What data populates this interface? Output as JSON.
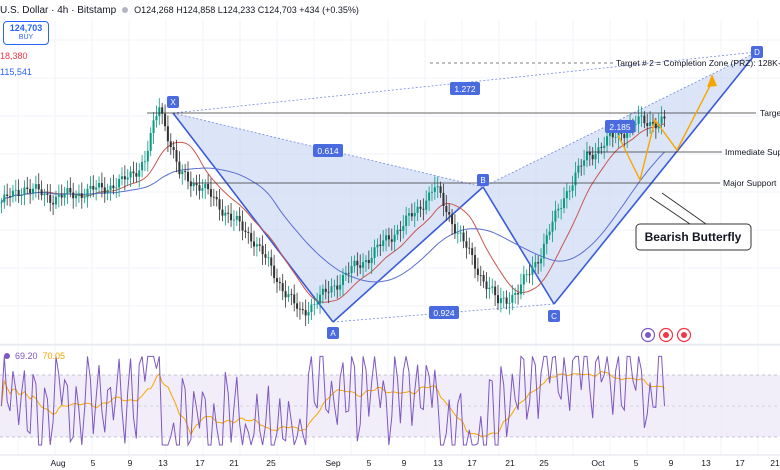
{
  "header": {
    "title": "U.S. Dollar · 4h · Bitstamp",
    "ohlc": "O124,268 H124,858 L124,233 C124,703 +434 (+0.35%)"
  },
  "buy_box": {
    "price": "124,703",
    "label": "BUY"
  },
  "moving_averages": {
    "ma1": "18,380",
    "ma2": "115,541"
  },
  "rsi": {
    "value1": "69.20",
    "value2": "70.05"
  },
  "colors": {
    "candle_up": "#089981",
    "candle_down": "#333333",
    "pattern_fill": "#c5d2f2",
    "pattern_stroke": "#3a5bd9",
    "ma_red": "#c9584f",
    "ma_blue": "#5b6fd1",
    "orange": "#f7a600",
    "rsi_line": "#7e57c2",
    "rsi_band": "#ede7f6"
  },
  "chart_data": [
    {
      "type": "line",
      "series_kind": "candlestick",
      "x_axis_ticks": [
        "Aug",
        "5",
        "9",
        "13",
        "17",
        "21",
        "25",
        "Sep",
        "5",
        "9",
        "13",
        "17",
        "21",
        "25",
        "Oct",
        "5",
        "9",
        "13",
        "17",
        "21"
      ],
      "pattern_points": [
        {
          "label": "X",
          "index": 55
        },
        {
          "label": "A",
          "index": 104
        },
        {
          "label": "B",
          "index": 151
        },
        {
          "label": "C",
          "index": 173
        },
        {
          "label": "D",
          "index": 236
        }
      ],
      "ratios": [
        "0.614",
        "1.272",
        "0.924",
        "2.185"
      ],
      "levels": [
        {
          "label": "Target # 2 = Completion Zone (PRZ): 128K-",
          "y": 0.135
        },
        {
          "label": "Target",
          "y": 0.24
        },
        {
          "label": "Immediate Sup",
          "y": 0.324
        },
        {
          "label": "Major Support",
          "y": 0.389
        }
      ],
      "annotation": "Bearish Butterfly",
      "close_profile": [
        0.39,
        0.36,
        0.34,
        0.36,
        0.4,
        0.36,
        0.34,
        0.33,
        0.31,
        0.32,
        0.35,
        0.39,
        0.42,
        0.44,
        0.46,
        0.49,
        0.52,
        0.5,
        0.47,
        0.45,
        0.47,
        0.5,
        0.49,
        0.47,
        0.44,
        0.46,
        0.48,
        0.46,
        0.44,
        0.45,
        0.47,
        0.49,
        0.51,
        0.52,
        0.5,
        0.49,
        0.46,
        0.44,
        0.45,
        0.43,
        0.41,
        0.4,
        0.39,
        0.42,
        0.44,
        0.43,
        0.4,
        0.37,
        0.36,
        0.38,
        0.34,
        0.3,
        0.26,
        0.22,
        0.2,
        0.25,
        0.3,
        0.37,
        0.4,
        0.38,
        0.37,
        0.39,
        0.41,
        0.4,
        0.42,
        0.45,
        0.43,
        0.47,
        0.5,
        0.54,
        0.52,
        0.55,
        0.57,
        0.55,
        0.52,
        0.55,
        0.58,
        0.61,
        0.59,
        0.62,
        0.65,
        0.63,
        0.61,
        0.64,
        0.67,
        0.7,
        0.72,
        0.74,
        0.71,
        0.69,
        0.73,
        0.77,
        0.8,
        0.83,
        0.81,
        0.84,
        0.87,
        0.89,
        0.88,
        0.91,
        0.93,
        0.95,
        0.97,
        0.99,
        1.0,
        0.97,
        0.94,
        0.92,
        0.9,
        0.88,
        0.87,
        0.89,
        0.86,
        0.83,
        0.81,
        0.84,
        0.82,
        0.79,
        0.76,
        0.78,
        0.8,
        0.77,
        0.74,
        0.72,
        0.75,
        0.73,
        0.7,
        0.68,
        0.66,
        0.68,
        0.64,
        0.6,
        0.58,
        0.6,
        0.56,
        0.54,
        0.52,
        0.51,
        0.53,
        0.49,
        0.47,
        0.5,
        0.48,
        0.46,
        0.44,
        0.45,
        0.42,
        0.43,
        0.4,
        0.39,
        0.4,
        0.41,
        0.44,
        0.47,
        0.52,
        0.56,
        0.6,
        0.63,
        0.67,
        0.7,
        0.72,
        0.74,
        0.78,
        0.81,
        0.83,
        0.86,
        0.88,
        0.9,
        0.93,
        0.95,
        0.97,
        0.96,
        0.95,
        0.96,
        0.94,
        0.92,
        0.88,
        0.83,
        0.78,
        0.72,
        0.66,
        0.62,
        0.58,
        0.55,
        0.52,
        0.51,
        0.49,
        0.47,
        0.45,
        0.43,
        0.42,
        0.41,
        0.4,
        0.38,
        0.36,
        0.34,
        0.31,
        0.28,
        0.25,
        0.22,
        0.19,
        0.16,
        0.14,
        0.12,
        0.1,
        0.08,
        0.07,
        0.06,
        0.05,
        0.04,
        0.03,
        0.02,
        0.02,
        0.03,
        0.02
      ]
    },
    {
      "type": "line",
      "panel": "rsi",
      "series": [
        {
          "name": "69.20"
        },
        {
          "name": "70.05"
        }
      ]
    }
  ]
}
